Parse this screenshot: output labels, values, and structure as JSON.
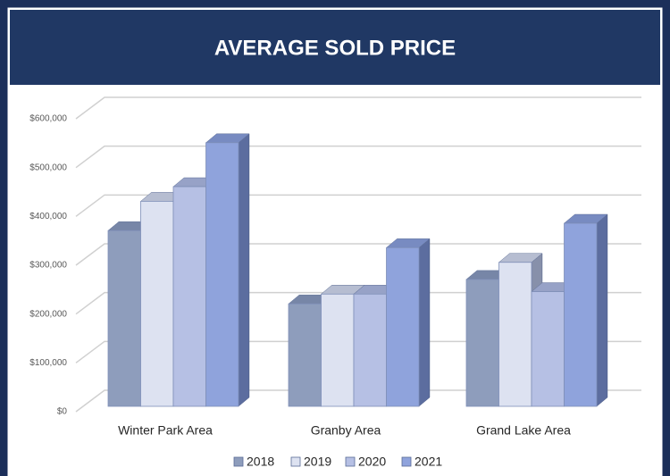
{
  "chart_data": {
    "type": "bar",
    "title": "AVERAGE SOLD PRICE",
    "categories": [
      "Winter Park Area",
      "Granby Area",
      "Grand Lake Area"
    ],
    "series": [
      {
        "name": "2018",
        "color": "#8e9dbc",
        "values": [
          360000,
          210000,
          260000
        ]
      },
      {
        "name": "2019",
        "color": "#dde2f1",
        "values": [
          420000,
          230000,
          295000
        ]
      },
      {
        "name": "2020",
        "color": "#b6c0e4",
        "values": [
          450000,
          230000,
          235000
        ]
      },
      {
        "name": "2021",
        "color": "#8fa3dc",
        "values": [
          540000,
          325000,
          375000
        ]
      }
    ],
    "ylim": [
      0,
      600000
    ],
    "yticks": [
      {
        "value": 0,
        "label": "$0"
      },
      {
        "value": 100000,
        "label": "$100,000"
      },
      {
        "value": 200000,
        "label": "$200,000"
      },
      {
        "value": 300000,
        "label": "$300,000"
      },
      {
        "value": 400000,
        "label": "$400,000"
      },
      {
        "value": 500000,
        "label": "$500,000"
      },
      {
        "value": 600000,
        "label": "$600,000"
      }
    ],
    "grid": true,
    "legend": "bottom"
  }
}
